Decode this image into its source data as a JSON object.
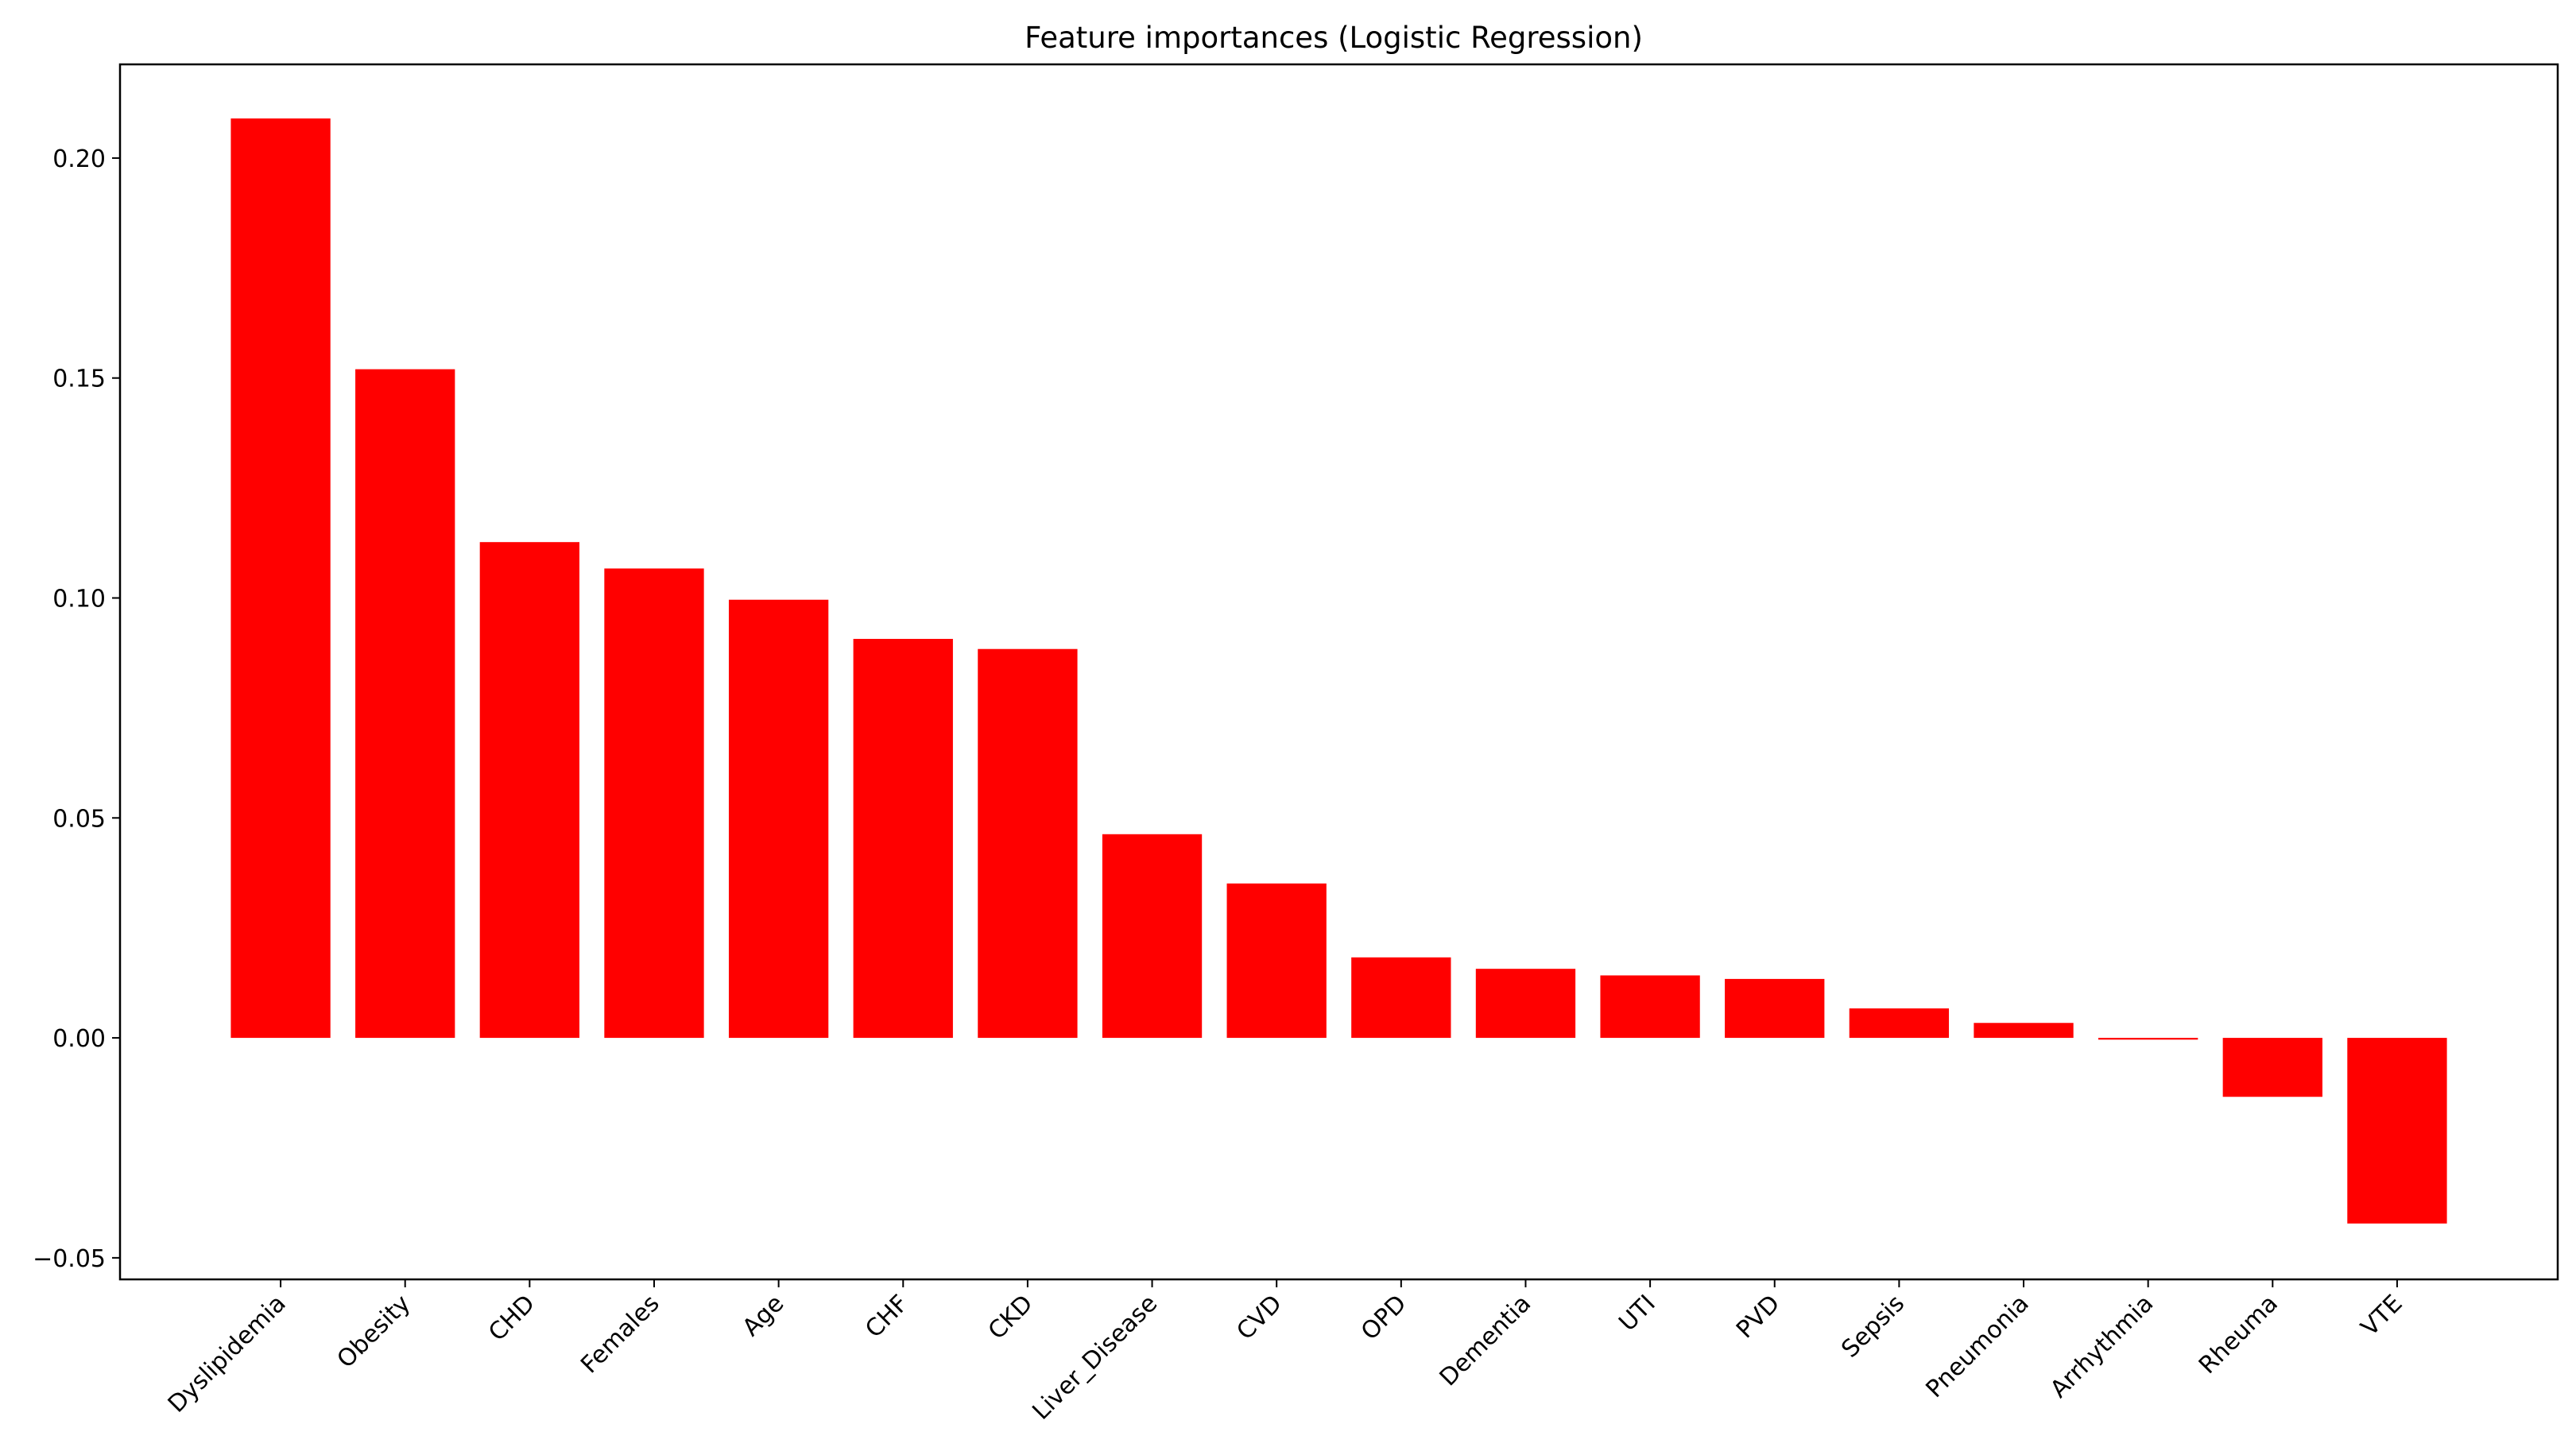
{
  "chart_data": {
    "type": "bar",
    "title": "Feature importances (Logistic Regression)",
    "xlabel": "",
    "ylabel": "",
    "categories": [
      "Dyslipidemia",
      "Obesity",
      "CHD",
      "Females",
      "Age",
      "CHF",
      "CKD",
      "Liver_Disease",
      "CVD",
      "OPD",
      "Dementia",
      "UTI",
      "PVD",
      "Sepsis",
      "Pneumonia",
      "Arrhythmia",
      "Rheuma",
      "VTE"
    ],
    "values": [
      0.209,
      0.152,
      0.1127,
      0.1067,
      0.0996,
      0.0907,
      0.0884,
      0.0463,
      0.0351,
      0.0183,
      0.0157,
      0.0142,
      0.0134,
      0.0067,
      0.0034,
      -0.0004,
      -0.0134,
      -0.0422
    ],
    "yticks": [
      -0.05,
      0.0,
      0.05,
      0.1,
      0.15,
      0.2
    ],
    "ytick_labels": [
      "−0.05",
      "0.00",
      "0.05",
      "0.10",
      "0.15",
      "0.20"
    ],
    "ylim": [
      -0.0549,
      0.2213
    ],
    "grid": false,
    "bar_color": "#ff0000"
  }
}
